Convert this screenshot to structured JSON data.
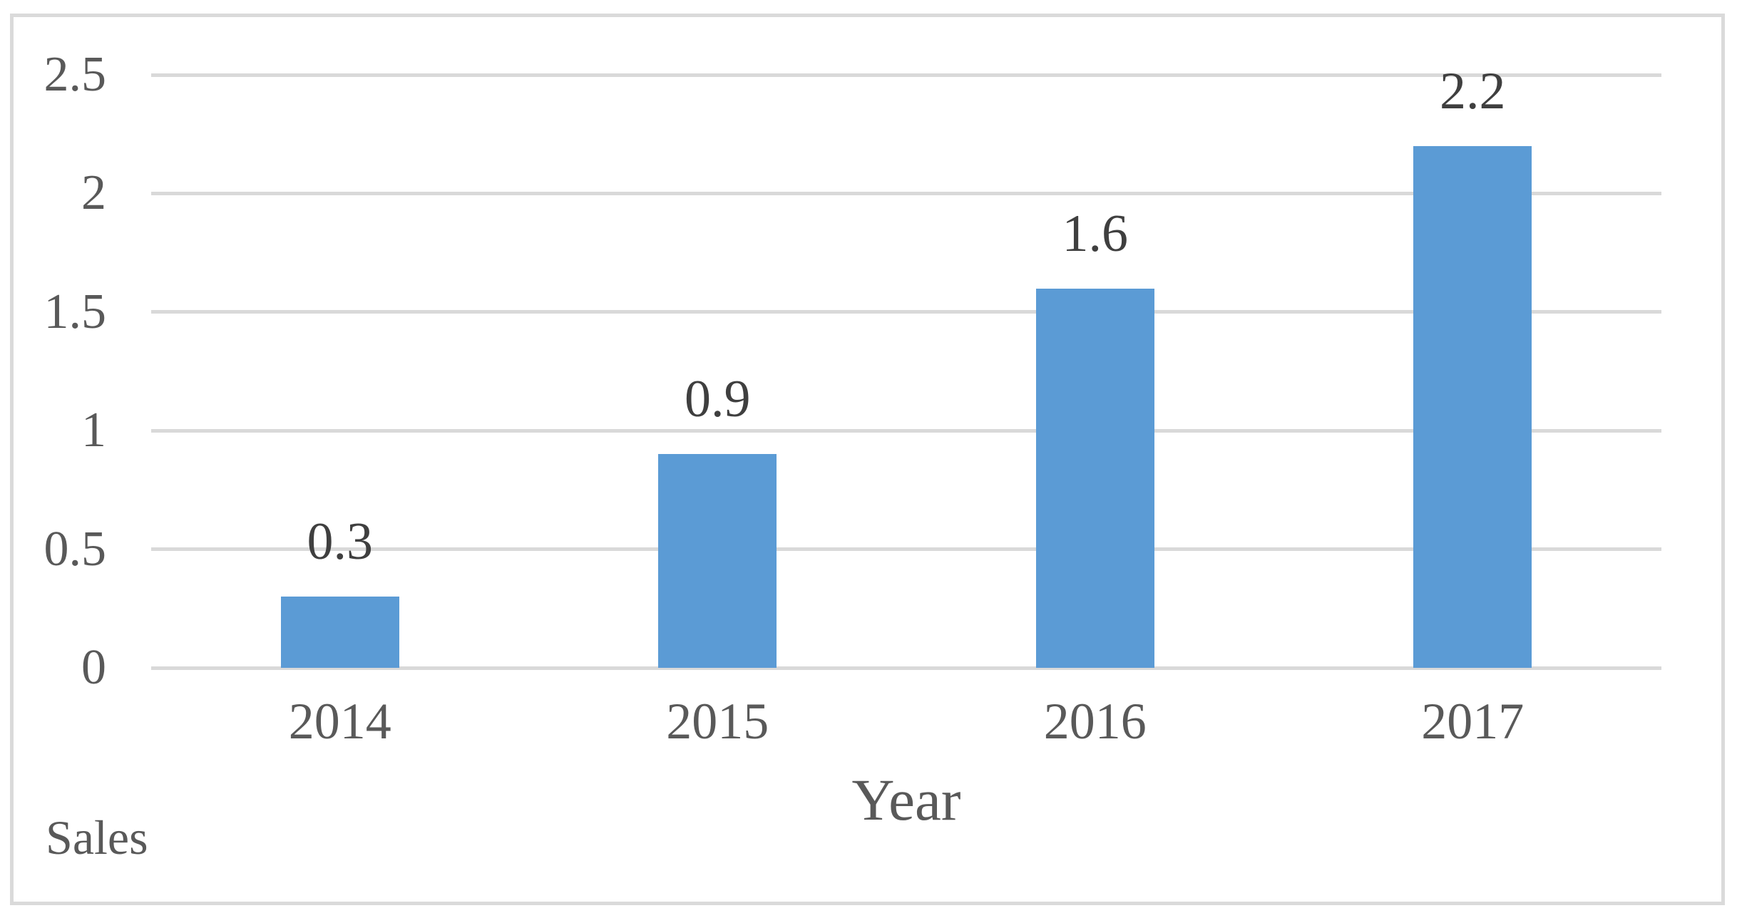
{
  "chart_data": {
    "type": "bar",
    "title": "",
    "categories": [
      "2014",
      "2015",
      "2016",
      "2017"
    ],
    "series": [
      {
        "name": "Sales",
        "values": [
          0.3,
          0.9,
          1.6,
          2.2
        ]
      }
    ],
    "data_labels": [
      "0.3",
      "0.9",
      "1.6",
      "2.2"
    ],
    "xlabel": "Year",
    "ylabel": "",
    "ylim": [
      0,
      2.5
    ],
    "yticks": [
      0,
      0.5,
      1,
      1.5,
      2,
      2.5
    ],
    "ytick_labels": [
      "0",
      "0.5",
      "1",
      "1.5",
      "2",
      "2.5"
    ],
    "grid": true,
    "legend_label": "Sales",
    "legend_position": "bottom-left",
    "colors": {
      "bar": "#5b9bd5",
      "gridline": "#d9d9d9",
      "axis_text": "#595959",
      "data_label": "#3f3f3f",
      "frame_border": "#dadada"
    }
  }
}
